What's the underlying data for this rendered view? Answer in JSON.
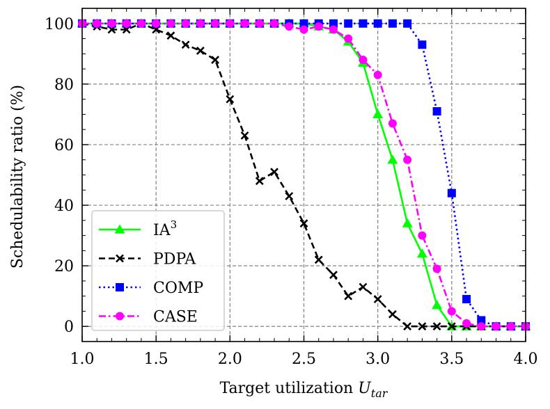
{
  "chart_data": {
    "type": "line",
    "title": "",
    "xlabel": "Target utilization",
    "xlabel_var": "U",
    "xlabel_sub": "tar",
    "ylabel": "Schedulability ratio (%)",
    "xlim": [
      1.0,
      4.0
    ],
    "ylim": [
      -5,
      105
    ],
    "xticks": [
      1.0,
      1.5,
      2.0,
      2.5,
      3.0,
      3.5,
      4.0
    ],
    "xtick_labels": [
      "1.0",
      "1.5",
      "2.0",
      "2.5",
      "3.0",
      "3.5",
      "4.0"
    ],
    "yticks": [
      0,
      20,
      40,
      60,
      80,
      100
    ],
    "ytick_labels": [
      "0",
      "20",
      "40",
      "60",
      "80",
      "100"
    ],
    "grid": true,
    "legend_position": "bottom-left",
    "series": [
      {
        "name": "IA",
        "name_sup": "3",
        "color": "#00ff00",
        "dash": "solid",
        "marker": "triangle",
        "x": [
          1.0,
          1.1,
          1.2,
          1.3,
          1.4,
          1.5,
          1.6,
          1.7,
          1.8,
          1.9,
          2.0,
          2.1,
          2.2,
          2.3,
          2.4,
          2.5,
          2.6,
          2.7,
          2.8,
          2.9,
          3.0,
          3.1,
          3.2,
          3.3,
          3.4,
          3.5,
          3.6,
          3.7,
          3.8,
          3.9,
          4.0
        ],
        "y": [
          100,
          100,
          100,
          100,
          100,
          100,
          100,
          100,
          100,
          100,
          100,
          100,
          100,
          100,
          100,
          100,
          99,
          98,
          94,
          87,
          70,
          55,
          34,
          24,
          7,
          0,
          0,
          0,
          0,
          0,
          0
        ]
      },
      {
        "name": "PDPA",
        "color": "#000000",
        "dash": "dashed",
        "marker": "x",
        "x": [
          1.0,
          1.1,
          1.2,
          1.3,
          1.4,
          1.5,
          1.6,
          1.7,
          1.8,
          1.9,
          2.0,
          2.1,
          2.2,
          2.3,
          2.4,
          2.5,
          2.6,
          2.7,
          2.8,
          2.9,
          3.0,
          3.1,
          3.2,
          3.3,
          3.4,
          3.5,
          3.6,
          3.7,
          3.8,
          3.9,
          4.0
        ],
        "y": [
          100,
          99,
          98,
          98,
          100,
          98,
          96,
          93,
          91,
          88,
          75,
          63,
          48,
          51,
          43,
          34,
          22,
          17,
          10,
          13,
          9,
          4,
          0,
          0,
          0,
          0,
          0,
          0,
          0,
          0,
          0
        ]
      },
      {
        "name": "COMP",
        "color": "#0000ff",
        "dash": "dotted",
        "marker": "square",
        "x": [
          1.0,
          1.1,
          1.2,
          1.3,
          1.4,
          1.5,
          1.6,
          1.7,
          1.8,
          1.9,
          2.0,
          2.1,
          2.2,
          2.3,
          2.4,
          2.5,
          2.6,
          2.7,
          2.8,
          2.9,
          3.0,
          3.1,
          3.2,
          3.3,
          3.4,
          3.5,
          3.6,
          3.7,
          3.8,
          3.9,
          4.0
        ],
        "y": [
          100,
          100,
          100,
          100,
          100,
          100,
          100,
          100,
          100,
          100,
          100,
          100,
          100,
          100,
          100,
          100,
          100,
          100,
          100,
          100,
          100,
          100,
          100,
          93,
          71,
          44,
          9,
          2,
          0,
          0,
          0
        ]
      },
      {
        "name": "CASE",
        "color": "#ff00ff",
        "dash": "dashdot",
        "marker": "circle",
        "x": [
          1.0,
          1.1,
          1.2,
          1.3,
          1.4,
          1.5,
          1.6,
          1.7,
          1.8,
          1.9,
          2.0,
          2.1,
          2.2,
          2.3,
          2.4,
          2.5,
          2.6,
          2.7,
          2.8,
          2.9,
          3.0,
          3.1,
          3.2,
          3.3,
          3.4,
          3.5,
          3.6,
          3.7,
          3.8,
          3.9,
          4.0
        ],
        "y": [
          100,
          100,
          100,
          100,
          100,
          100,
          100,
          100,
          100,
          100,
          100,
          100,
          100,
          100,
          99,
          98,
          99,
          98,
          95,
          88,
          83,
          67,
          55,
          30,
          19,
          5,
          1,
          0,
          0,
          0,
          0
        ]
      }
    ]
  }
}
